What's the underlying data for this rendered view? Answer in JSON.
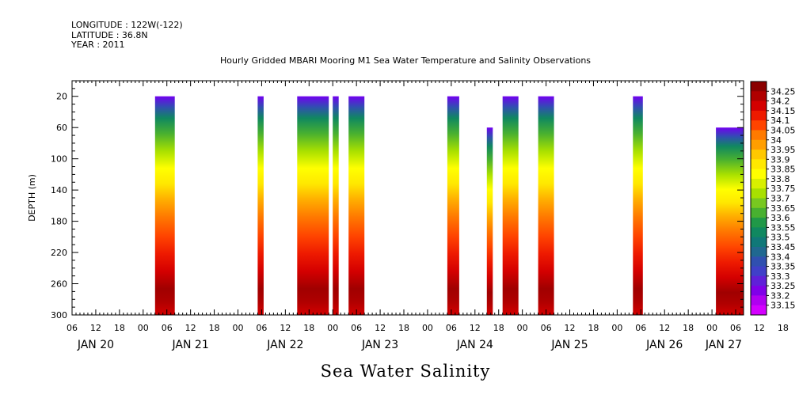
{
  "header": {
    "longitude": "LONGITUDE : 122W(-122)",
    "latitude": "LATITUDE : 36.8N",
    "year": "YEAR : 2011"
  },
  "chart_data": {
    "type": "heatmap",
    "title": "Hourly Gridded MBARI Mooring M1 Sea Water Temperature and Salinity Observations",
    "xlabel": "Sea Water Salinity",
    "ylabel": "DEPTH (m)",
    "ylim": [
      300,
      0
    ],
    "y_ticks": [
      20,
      60,
      100,
      140,
      180,
      220,
      260,
      300
    ],
    "xlim": [
      "2011-01-20T06:00",
      "2011-01-27T08:00"
    ],
    "x_hour_ticks": [
      "06",
      "12",
      "18",
      "00",
      "06",
      "12",
      "18",
      "00",
      "06",
      "12",
      "18",
      "00",
      "06",
      "12",
      "18",
      "00",
      "06",
      "12",
      "18",
      "00",
      "06",
      "12",
      "18",
      "00",
      "06",
      "12",
      "18",
      "00",
      "06",
      "12",
      "18",
      "00",
      "06",
      "12",
      "18",
      "00",
      "06",
      "12",
      "18",
      "00",
      "06",
      "12",
      "18",
      "00",
      "06",
      "12",
      "18",
      "00",
      "06",
      "12",
      "18",
      "00",
      "06",
      "12",
      "18",
      "00",
      "06",
      "12",
      "18",
      "00",
      "06"
    ],
    "x_day_labels": [
      "JAN 20",
      "JAN 21",
      "JAN 22",
      "JAN 23",
      "JAN 24",
      "JAN 25",
      "JAN 26",
      "JAN 27"
    ],
    "colorbar": {
      "levels": [
        "34.25",
        "34.2",
        "34.15",
        "34.1",
        "34.05",
        "34",
        "33.95",
        "33.9",
        "33.85",
        "33.8",
        "33.75",
        "33.7",
        "33.65",
        "33.6",
        "33.55",
        "33.5",
        "33.45",
        "33.4",
        "33.35",
        "33.3",
        "33.25",
        "33.2",
        "33.15"
      ],
      "colors": [
        "#8b0000",
        "#b00000",
        "#d40000",
        "#ee1a00",
        "#ff4400",
        "#ff7a00",
        "#ff9e00",
        "#ffc800",
        "#ffe800",
        "#ffff00",
        "#d8f000",
        "#a8e000",
        "#78c820",
        "#48b030",
        "#209848",
        "#108860",
        "#107878",
        "#206890",
        "#3050b0",
        "#4040c8",
        "#6020d8",
        "#8000e8",
        "#b000f0",
        "#d400ff"
      ]
    },
    "grid": false,
    "segments": [
      {
        "start": "2011-01-21T03:00",
        "end": "2011-01-21T08:00",
        "top": 20
      },
      {
        "start": "2011-01-22T05:00",
        "end": "2011-01-22T06:30",
        "top": 20
      },
      {
        "start": "2011-01-22T15:00",
        "end": "2011-01-22T23:00",
        "top": 20
      },
      {
        "start": "2011-01-23T00:00",
        "end": "2011-01-23T01:30",
        "top": 20
      },
      {
        "start": "2011-01-23T04:00",
        "end": "2011-01-23T08:00",
        "top": 20
      },
      {
        "start": "2011-01-24T05:00",
        "end": "2011-01-24T08:00",
        "top": 20
      },
      {
        "start": "2011-01-24T15:00",
        "end": "2011-01-24T16:30",
        "top": 60
      },
      {
        "start": "2011-01-24T19:00",
        "end": "2011-01-24T23:00",
        "top": 20
      },
      {
        "start": "2011-01-25T04:00",
        "end": "2011-01-25T08:00",
        "top": 20
      },
      {
        "start": "2011-01-26T04:00",
        "end": "2011-01-26T06:30",
        "top": 20
      },
      {
        "start": "2011-01-27T01:00",
        "end": "2011-01-27T08:00",
        "top": 60
      }
    ]
  }
}
